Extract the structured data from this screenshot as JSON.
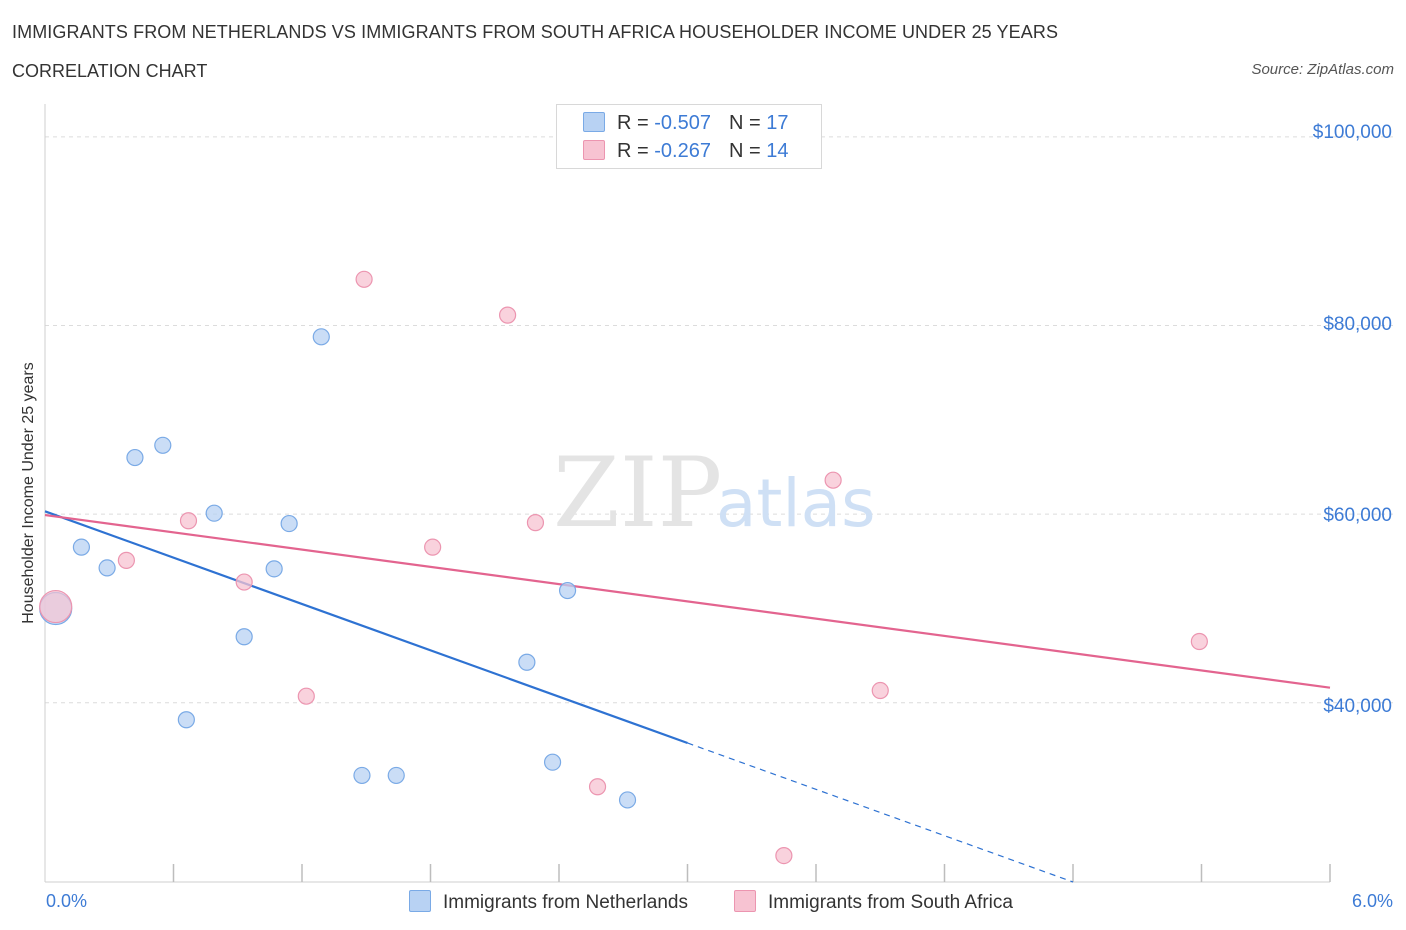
{
  "header": {
    "title": "IMMIGRANTS FROM NETHERLANDS VS IMMIGRANTS FROM SOUTH AFRICA HOUSEHOLDER INCOME UNDER 25 YEARS",
    "subtitle": "CORRELATION CHART",
    "source": "Source: ZipAtlas.com"
  },
  "legend": {
    "r_label": "R =",
    "n_label": "N =",
    "series": [
      {
        "r": "-0.507",
        "n": "17"
      },
      {
        "r": "-0.267",
        "n": "14"
      }
    ]
  },
  "watermark": {
    "zip": "ZIP",
    "atlas": "atlas"
  },
  "colors": {
    "netherlands_fill": "#b8d2f3",
    "netherlands_stroke": "#7aaae6",
    "netherlands_line": "#2e72d2",
    "south_africa_fill": "#f7c3d2",
    "south_africa_stroke": "#ec95b0",
    "south_africa_line": "#e3648f",
    "axis_text": "#3d7bd5"
  },
  "chart_data": {
    "type": "scatter",
    "title": "IMMIGRANTS FROM NETHERLANDS VS IMMIGRANTS FROM SOUTH AFRICA HOUSEHOLDER INCOME UNDER 25 YEARS",
    "xlabel": "",
    "ylabel": "Householder Income Under 25 years",
    "xlim": [
      0,
      6
    ],
    "ylim": [
      21000,
      102000
    ],
    "x_tick_labels": [
      "0.0%",
      "6.0%"
    ],
    "y_ticks": [
      40000,
      60000,
      80000,
      100000
    ],
    "y_tick_labels": [
      "$40,000",
      "$60,000",
      "$80,000",
      "$100,000"
    ],
    "grid": true,
    "legend_position": "bottom",
    "series": [
      {
        "name": "Immigrants from Netherlands",
        "r": -0.507,
        "n": 17,
        "points": [
          {
            "x": 0.05,
            "y": 50000,
            "big": true
          },
          {
            "x": 0.17,
            "y": 56500
          },
          {
            "x": 0.29,
            "y": 54300
          },
          {
            "x": 0.42,
            "y": 66000
          },
          {
            "x": 0.55,
            "y": 67300
          },
          {
            "x": 0.66,
            "y": 38200
          },
          {
            "x": 0.79,
            "y": 60100
          },
          {
            "x": 0.93,
            "y": 47000
          },
          {
            "x": 1.07,
            "y": 54200
          },
          {
            "x": 1.14,
            "y": 59000
          },
          {
            "x": 1.29,
            "y": 78800
          },
          {
            "x": 1.48,
            "y": 32300
          },
          {
            "x": 1.64,
            "y": 32300
          },
          {
            "x": 2.25,
            "y": 44300
          },
          {
            "x": 2.37,
            "y": 33700
          },
          {
            "x": 2.44,
            "y": 51900
          },
          {
            "x": 2.72,
            "y": 29700
          }
        ],
        "trend": {
          "x0": 0.0,
          "y0": 60300,
          "x_solid_end": 3.0,
          "x1": 4.8,
          "y1": 21000
        }
      },
      {
        "name": "Immigrants from South Africa",
        "r": -0.267,
        "n": 14,
        "points": [
          {
            "x": 0.05,
            "y": 50200,
            "big": true
          },
          {
            "x": 0.38,
            "y": 55100
          },
          {
            "x": 0.67,
            "y": 59300
          },
          {
            "x": 0.93,
            "y": 52800
          },
          {
            "x": 1.22,
            "y": 40700
          },
          {
            "x": 1.49,
            "y": 84900
          },
          {
            "x": 1.81,
            "y": 56500
          },
          {
            "x": 2.16,
            "y": 81100
          },
          {
            "x": 2.29,
            "y": 59100
          },
          {
            "x": 2.58,
            "y": 31100
          },
          {
            "x": 3.45,
            "y": 23800
          },
          {
            "x": 3.68,
            "y": 63600
          },
          {
            "x": 3.9,
            "y": 41300
          },
          {
            "x": 5.39,
            "y": 46500
          }
        ],
        "trend": {
          "x0": 0.0,
          "y0": 59900,
          "x1": 6.0,
          "y1": 41600
        }
      }
    ]
  }
}
